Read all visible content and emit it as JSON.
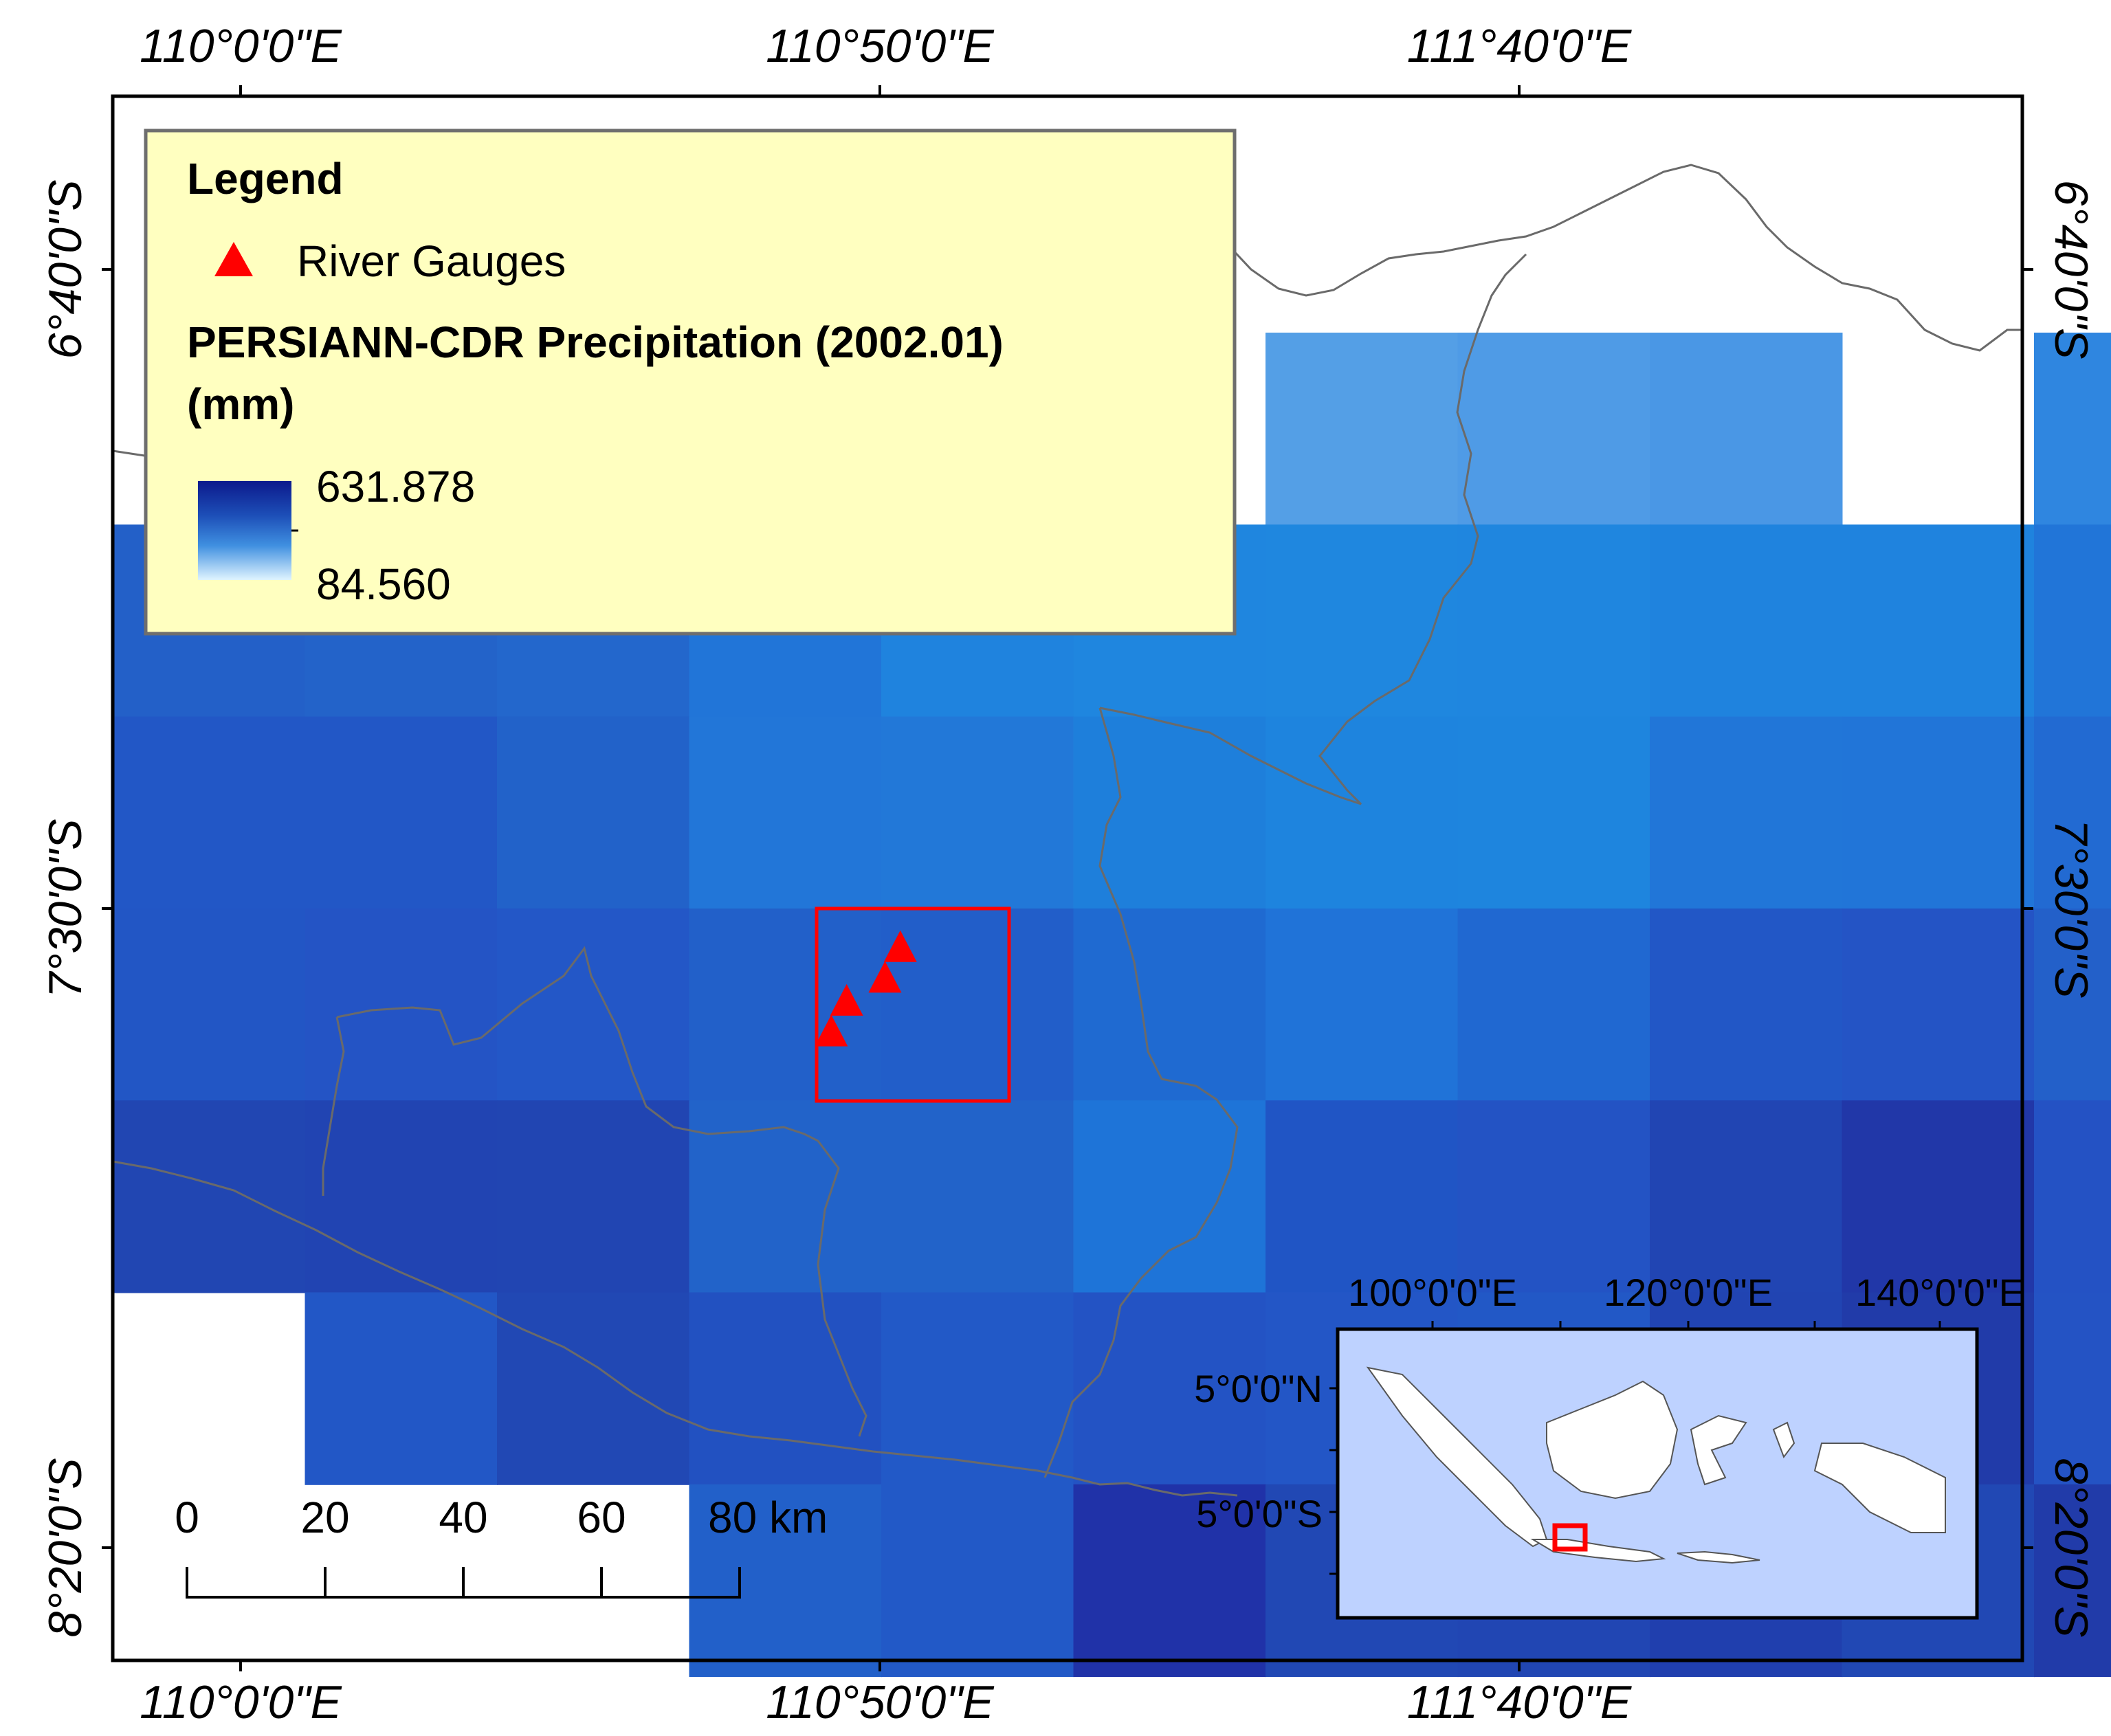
{
  "map": {
    "top_lon_labels": [
      "110°0'0\"E",
      "110°50'0\"E",
      "111°40'0\"E"
    ],
    "bottom_lon_labels": [
      "110°0'0\"E",
      "110°50'0\"E",
      "111°40'0\"E"
    ],
    "left_lat_labels": [
      "6°40'0\"S",
      "7°30'0\"S",
      "8°20'0\"S"
    ],
    "right_lat_labels": [
      "6°40'0\"S",
      "7°30'0\"S",
      "8°20'0\"S"
    ],
    "precip_grid_colors": [
      [
        null,
        null,
        null,
        null,
        null,
        null,
        "#549fe6",
        "#4f9be6",
        "#4a97e5",
        null,
        "#2f86e0"
      ],
      [
        "#2360c8",
        "#2363c9",
        "#2367cc",
        "#2175d8",
        "#1f83de",
        "#1f86df",
        "#1f87df",
        "#1f86df",
        "#1f83de",
        "#1f83de",
        "#2175d8"
      ],
      [
        "#2257c6",
        "#2257c6",
        "#2262c9",
        "#2276d8",
        "#2278d8",
        "#1e7fdb",
        "#1e84de",
        "#1e85de",
        "#2176d8",
        "#2175d8",
        "#226ad2"
      ],
      [
        "#2256c5",
        "#2454c5",
        "#2357c7",
        "#2260c9",
        "#225ec9",
        "#1f6ad1",
        "#2073d8",
        "#2068d1",
        "#2257c6",
        "#2454c5",
        "#2360c9"
      ],
      [
        "#2146b2",
        "#2144b2",
        "#2145b2",
        "#2263c9",
        "#2263c9",
        "#1e74d8",
        "#2055c5",
        "#2353c4",
        "#2145b3",
        "#2137a8",
        "#2452c4"
      ],
      [
        null,
        "#2257c6",
        "#2148b4",
        "#2251c1",
        "#2259c7",
        "#2353c4",
        "#2356c6",
        "#2258c6",
        "#2144b2",
        "#213ba9",
        "#2453c4"
      ],
      [
        null,
        null,
        null,
        "#2260c9",
        "#2259c7",
        "#2032a8",
        "#2148b4",
        "#2146b3",
        "#203fae",
        "#2148b4",
        "#213ba9"
      ]
    ],
    "river_gauge_markers": [
      {
        "lon": 110.86,
        "lat": -7.55
      },
      {
        "lon": 110.84,
        "lat": -7.59
      },
      {
        "lon": 110.79,
        "lat": -7.62
      },
      {
        "lon": 110.77,
        "lat": -7.66
      }
    ],
    "colors": {
      "gauge": "#ff0000",
      "frame": "#000000",
      "legend_bg": "#ffffc0",
      "coastline": "#6a6a6a",
      "inset_sea": "#bed2ff",
      "ramp_high": "#0c1a8c",
      "ramp_low": "#e0f4ff"
    }
  },
  "legend": {
    "title": "Legend",
    "gauge_label": "River Gauges",
    "raster_title_line1": "PERSIANN-CDR Precipitation (2002.01)",
    "raster_title_line2": "(mm)",
    "max_value": "631.878",
    "min_value": "84.560"
  },
  "scale_bar": {
    "labels": [
      "0",
      "20",
      "40",
      "60",
      "80 km"
    ]
  },
  "inset": {
    "lon_labels": [
      "100°0'0\"E",
      "120°0'0\"E",
      "140°0'0\"E"
    ],
    "lat_labels": [
      "5°0'0\"N",
      "5°0'0\"S"
    ]
  }
}
